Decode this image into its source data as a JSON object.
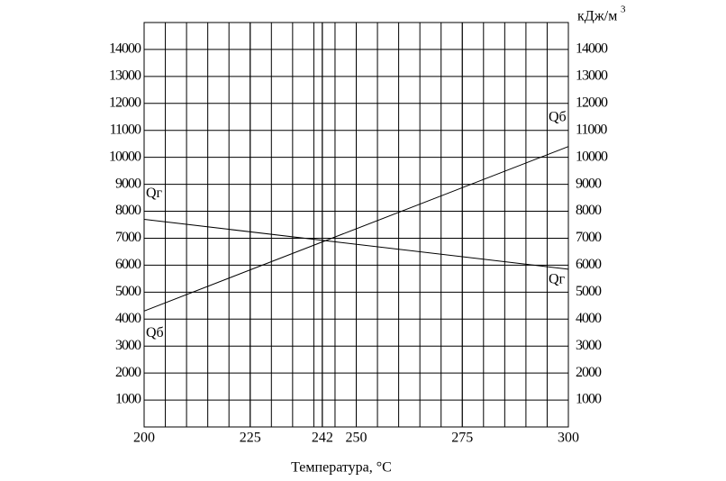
{
  "chart_data": {
    "type": "line",
    "x_label": "Температура, °C",
    "unit": "кДж/м",
    "unit_sup": "3",
    "xlim": [
      200,
      300
    ],
    "ylim": [
      0,
      15000
    ],
    "xticks": [
      200,
      225,
      242,
      250,
      275,
      300
    ],
    "x_grid": [
      205,
      210,
      215,
      220,
      225,
      230,
      235,
      240,
      242,
      245,
      250,
      255,
      260,
      265,
      270,
      275,
      280,
      285,
      290,
      295
    ],
    "yticks": [
      1000,
      2000,
      3000,
      4000,
      5000,
      6000,
      7000,
      8000,
      9000,
      10000,
      11000,
      12000,
      13000,
      14000
    ],
    "grid": true,
    "series": [
      {
        "name": "Qб",
        "color": "#000000",
        "x": [
          200,
          300
        ],
        "values": [
          4300,
          10400
        ]
      },
      {
        "name": "Qг",
        "color": "#000000",
        "x": [
          200,
          300
        ],
        "values": [
          7700,
          5850
        ]
      }
    ]
  }
}
